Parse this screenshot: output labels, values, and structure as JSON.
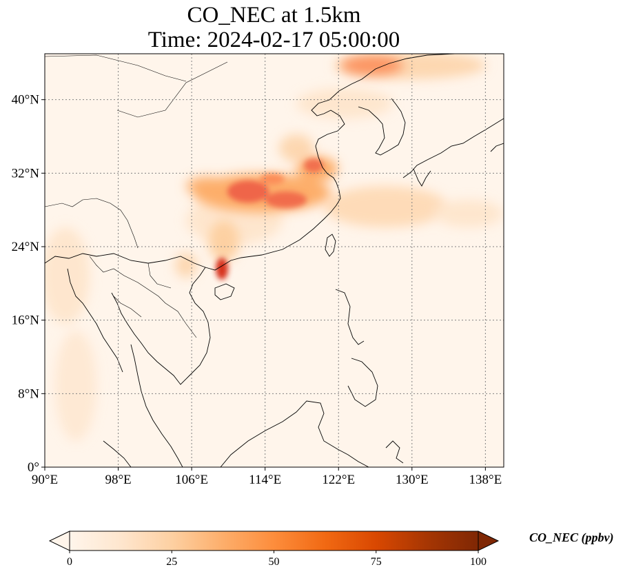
{
  "title": {
    "line1": "CO_NEC at 1.5km",
    "line2": "Time: 2024-02-17 05:00:00"
  },
  "map": {
    "projection": "PlateCarree",
    "lon_range": [
      90,
      140
    ],
    "lat_range": [
      0,
      45
    ],
    "lon_ticks": [
      {
        "value": 90,
        "label": "90°E"
      },
      {
        "value": 98,
        "label": "98°E"
      },
      {
        "value": 106,
        "label": "106°E"
      },
      {
        "value": 114,
        "label": "114°E"
      },
      {
        "value": 122,
        "label": "122°E"
      },
      {
        "value": 130,
        "label": "130°E"
      },
      {
        "value": 138,
        "label": "138°E"
      }
    ],
    "lat_ticks": [
      {
        "value": 0,
        "label": "0°"
      },
      {
        "value": 8,
        "label": "8°N"
      },
      {
        "value": 16,
        "label": "16°N"
      },
      {
        "value": 24,
        "label": "24°N"
      },
      {
        "value": 32,
        "label": "32°N"
      },
      {
        "value": 40,
        "label": "40°N"
      }
    ],
    "gridlines": "dotted grey",
    "background_color": "#fff5eb",
    "coastline_color": "#000000"
  },
  "colorbar": {
    "label": "CO_NEC (ppbv)",
    "colormap": "OrRd",
    "min": 0,
    "max": 100,
    "extend": "both",
    "ticks": [
      {
        "value": 0,
        "label": "0"
      },
      {
        "value": 25,
        "label": "25"
      },
      {
        "value": 50,
        "label": "50"
      },
      {
        "value": 75,
        "label": "75"
      },
      {
        "value": 100,
        "label": "100"
      }
    ],
    "stops": [
      "#fff5eb",
      "#fee6ce",
      "#fdd0a2",
      "#fdae6b",
      "#fd8d3c",
      "#f16913",
      "#d94801",
      "#a63603",
      "#7f2704"
    ]
  }
}
